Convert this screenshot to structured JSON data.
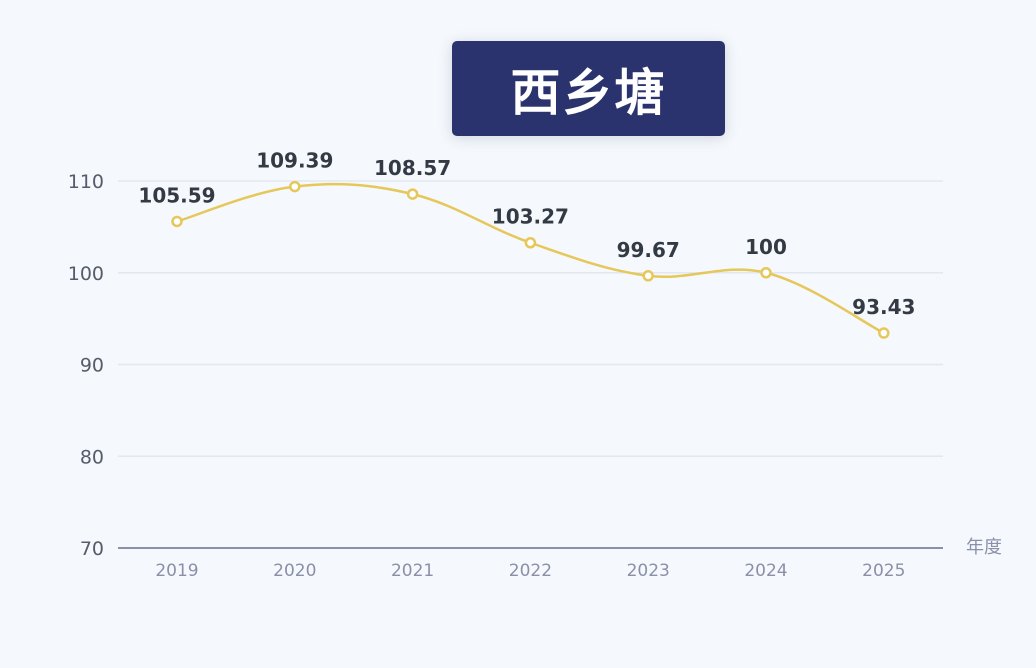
{
  "chart_data": {
    "type": "line",
    "title": "西乡塘",
    "xlabel": "年度",
    "ylabel": "",
    "categories": [
      "2019",
      "2020",
      "2021",
      "2022",
      "2023",
      "2024",
      "2025"
    ],
    "values": [
      105.59,
      109.39,
      108.57,
      103.27,
      99.67,
      100,
      93.43
    ],
    "data_labels": [
      "105.59",
      "109.39",
      "108.57",
      "103.27",
      "99.67",
      "100",
      "93.43"
    ],
    "ylim": [
      70,
      110
    ],
    "yticks": [
      "70",
      "80",
      "90",
      "100",
      "110"
    ],
    "grid": true,
    "smooth": true,
    "colors": {
      "line": "#e6c75a",
      "title_bg": "#2b336e",
      "axis": "#8a90a8",
      "grid": "#e3e8f0",
      "label": "#333a44"
    }
  }
}
